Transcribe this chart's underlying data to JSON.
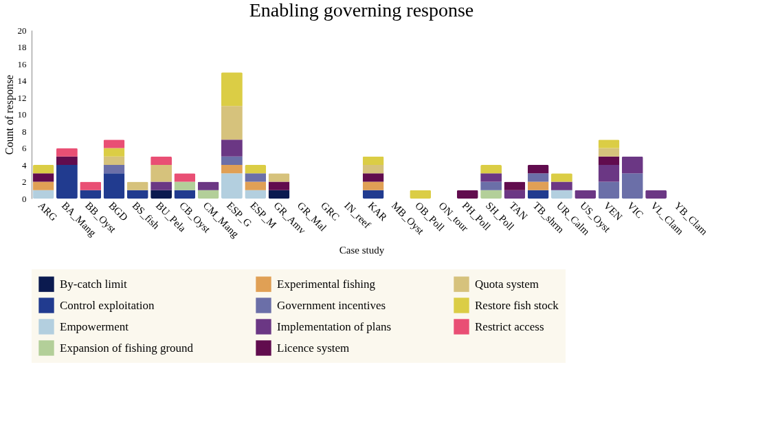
{
  "chart_data": {
    "type": "bar",
    "stacked": true,
    "title": "Enabling governing response",
    "xlabel": "Case study",
    "ylabel": "Count of response",
    "categories": [
      "ARG",
      "BA_Mang",
      "BB_Oyst",
      "BGD",
      "BS_fish",
      "BU_Pela",
      "CB_Oyst",
      "CM_Mang",
      "ESP_G",
      "ESP_M",
      "GR_Amv",
      "GR_Mal",
      "GRC",
      "IN_reef",
      "KAR",
      "MB_Oyst",
      "OB_Poll",
      "ON_tour",
      "PH_Poll",
      "SH_Poll",
      "TAN",
      "TB_shrm",
      "UR_Calm",
      "US_Oyst",
      "VEN",
      "VIC",
      "VL_Clam",
      "YB_Clam"
    ],
    "ylim": [
      0,
      20
    ],
    "yticks": [
      0,
      2,
      4,
      6,
      8,
      10,
      12,
      14,
      16,
      18,
      20
    ],
    "grid": false,
    "legend": "bottom",
    "series": [
      {
        "name": "By-catch limit",
        "color": "#0b1a4f",
        "values": [
          0,
          0,
          0,
          0,
          0,
          1,
          0,
          0,
          0,
          0,
          1,
          0,
          0,
          0,
          0,
          0,
          0,
          0,
          0,
          0,
          0,
          0,
          0,
          0,
          0,
          0,
          0,
          0
        ]
      },
      {
        "name": "Control exploitation",
        "color": "#213b8f",
        "values": [
          0,
          4,
          1,
          3,
          1,
          0,
          1,
          0,
          0,
          0,
          0,
          0,
          0,
          0,
          1,
          0,
          0,
          0,
          0,
          0,
          0,
          1,
          0,
          0,
          0,
          0,
          0,
          0
        ]
      },
      {
        "name": "Empowerment",
        "color": "#b3cfdf",
        "values": [
          1,
          0,
          0,
          0,
          0,
          0,
          0,
          0,
          3,
          1,
          0,
          0,
          0,
          0,
          0,
          0,
          0,
          0,
          0,
          0,
          0,
          0,
          1,
          0,
          0,
          0,
          0,
          0
        ]
      },
      {
        "name": "Expansion of fishing ground",
        "color": "#b3cf99",
        "values": [
          0,
          0,
          0,
          0,
          0,
          0,
          1,
          1,
          0,
          0,
          0,
          0,
          0,
          0,
          0,
          0,
          0,
          0,
          0,
          1,
          0,
          0,
          0,
          0,
          0,
          0,
          0,
          0
        ]
      },
      {
        "name": "Experimental fishing",
        "color": "#e0a055",
        "values": [
          1,
          0,
          0,
          0,
          0,
          0,
          0,
          0,
          1,
          1,
          0,
          0,
          0,
          0,
          1,
          0,
          0,
          0,
          0,
          0,
          0,
          1,
          0,
          0,
          0,
          0,
          0,
          0
        ]
      },
      {
        "name": "Government incentives",
        "color": "#6b6fa8",
        "values": [
          0,
          0,
          0,
          1,
          0,
          0,
          0,
          0,
          1,
          1,
          0,
          0,
          0,
          0,
          0,
          0,
          0,
          0,
          0,
          1,
          0,
          1,
          0,
          0,
          2,
          3,
          0,
          0
        ]
      },
      {
        "name": "Implementation of plans",
        "color": "#6b3784",
        "values": [
          0,
          0,
          0,
          0,
          0,
          1,
          0,
          1,
          2,
          0,
          0,
          0,
          0,
          0,
          0,
          0,
          0,
          0,
          0,
          1,
          1,
          0,
          1,
          1,
          2,
          2,
          1,
          0
        ]
      },
      {
        "name": "Licence system",
        "color": "#610c4e",
        "values": [
          1,
          1,
          0,
          0,
          0,
          0,
          0,
          0,
          0,
          0,
          1,
          0,
          0,
          0,
          1,
          0,
          0,
          0,
          1,
          0,
          1,
          1,
          0,
          0,
          1,
          0,
          0,
          0
        ]
      },
      {
        "name": "Quota system",
        "color": "#d6c27c",
        "values": [
          0,
          0,
          0,
          1,
          1,
          2,
          0,
          0,
          4,
          0,
          1,
          0,
          0,
          0,
          1,
          0,
          0,
          0,
          0,
          0,
          0,
          0,
          0,
          0,
          1,
          0,
          0,
          0
        ]
      },
      {
        "name": "Restore fish stock",
        "color": "#dbcd45",
        "values": [
          1,
          0,
          0,
          1,
          0,
          0,
          0,
          0,
          4,
          1,
          0,
          0,
          0,
          0,
          1,
          0,
          1,
          0,
          0,
          1,
          0,
          0,
          1,
          0,
          1,
          0,
          0,
          0
        ]
      },
      {
        "name": "Restrict access",
        "color": "#e94f74",
        "values": [
          0,
          1,
          1,
          1,
          0,
          1,
          1,
          0,
          0,
          0,
          0,
          0,
          0,
          0,
          0,
          0,
          0,
          0,
          0,
          0,
          0,
          0,
          0,
          0,
          0,
          0,
          0,
          0
        ]
      }
    ]
  }
}
